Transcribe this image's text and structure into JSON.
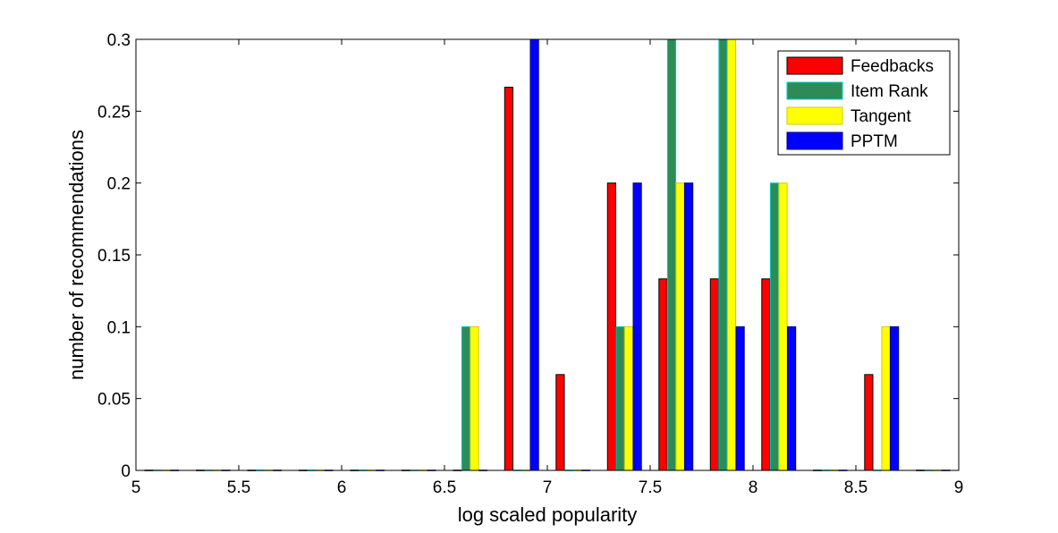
{
  "chart_data": {
    "type": "bar",
    "title": "",
    "xlabel": "log scaled popularity",
    "ylabel": "number of recommendations",
    "xlim": [
      5,
      9
    ],
    "ylim": [
      0,
      0.3
    ],
    "x_ticks": [
      "5",
      "5.5",
      "6",
      "6.5",
      "7",
      "7.5",
      "8",
      "8.5",
      "9"
    ],
    "y_ticks": [
      "0",
      "0.05",
      "0.1",
      "0.15",
      "0.2",
      "0.25",
      "0.3"
    ],
    "grid": false,
    "legend_position": "top-right",
    "bin_centers": [
      5.125,
      5.375,
      5.625,
      5.875,
      6.125,
      6.375,
      6.625,
      6.875,
      7.125,
      7.375,
      7.625,
      7.875,
      8.125,
      8.375,
      8.625,
      8.875
    ],
    "series": [
      {
        "name": "Feedbacks",
        "color": "#ff0000",
        "edge": "#000000",
        "values": [
          0,
          0,
          0,
          0,
          0,
          0,
          0,
          0.2667,
          0.0667,
          0.2,
          0.1333,
          0.1333,
          0.1333,
          0,
          0.0667,
          0
        ]
      },
      {
        "name": "Item Rank",
        "color": "#2e8b57",
        "edge": "#00cccc",
        "values": [
          0,
          0,
          0,
          0,
          0,
          0,
          0.1,
          0,
          0,
          0.1,
          0.3,
          0.3,
          0.2,
          0,
          0,
          0
        ]
      },
      {
        "name": "Tangent",
        "color": "#ffff00",
        "edge": "#cccc00",
        "values": [
          0,
          0,
          0,
          0,
          0,
          0,
          0.1,
          0,
          0,
          0.1,
          0.2,
          0.3,
          0.2,
          0,
          0.1,
          0
        ]
      },
      {
        "name": "PPTM",
        "color": "#0000ff",
        "edge": "#000080",
        "values": [
          0,
          0,
          0,
          0,
          0,
          0,
          0,
          0.3,
          0,
          0.2,
          0.2,
          0.1,
          0.1,
          0,
          0.1,
          0
        ]
      }
    ]
  }
}
